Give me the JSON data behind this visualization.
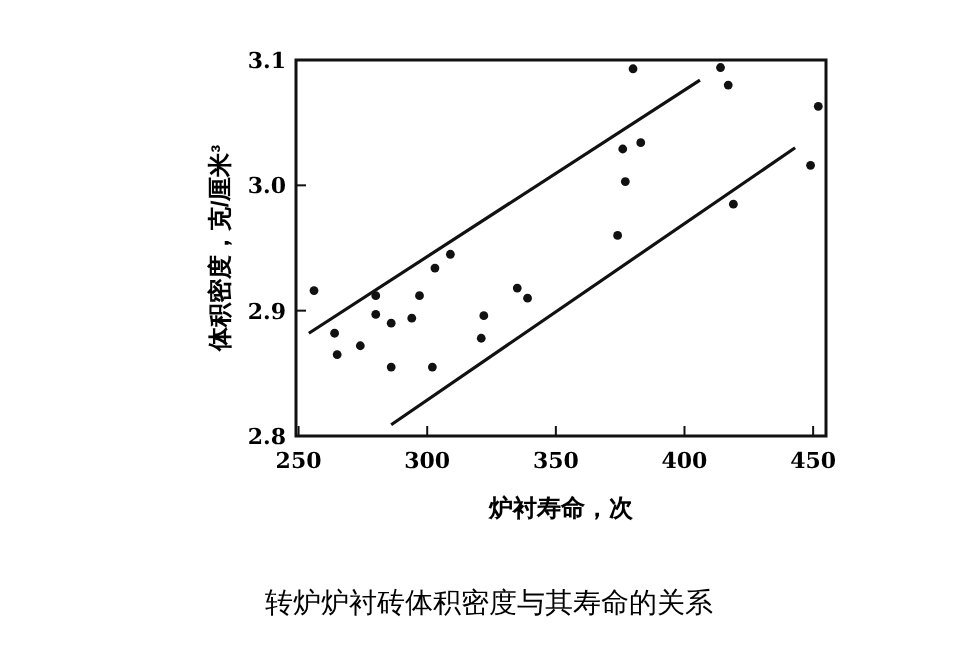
{
  "chart_data": {
    "type": "scatter",
    "title": "转炉炉衬砖体积密度与其寿命的关系",
    "xlabel": "炉衬寿命，次",
    "ylabel": "体积密度，克/厘米³",
    "xlim": [
      249,
      455
    ],
    "ylim": [
      2.8,
      3.1
    ],
    "xticks": [
      250,
      300,
      350,
      400,
      450
    ],
    "yticks": [
      2.8,
      2.9,
      {
        "value": 3.0,
        "label": "3.0"
      },
      3.1
    ],
    "grid": false,
    "marker": "circle",
    "series": [
      {
        "color": "#111111",
        "x": [
          256,
          264,
          265,
          274,
          280,
          280,
          286,
          286,
          294,
          297,
          302,
          303,
          309,
          321,
          322,
          335,
          339,
          374,
          376,
          377,
          380,
          383,
          414,
          417,
          419,
          449,
          452
        ],
        "values": [
          2.916,
          2.882,
          2.865,
          2.872,
          2.912,
          2.897,
          2.89,
          2.855,
          2.894,
          2.912,
          2.855,
          2.934,
          2.945,
          2.878,
          2.896,
          2.918,
          2.91,
          2.96,
          3.029,
          3.003,
          3.093,
          3.034,
          3.094,
          3.08,
          2.985,
          3.016,
          3.063
        ]
      },
      {
        "type": "line",
        "color": "#111111",
        "marker": "none",
        "x": [
          254,
          406
        ],
        "values": [
          2.882,
          3.084
        ]
      },
      {
        "type": "line",
        "color": "#111111",
        "marker": "none",
        "x": [
          286,
          443
        ],
        "values": [
          2.809,
          3.03
        ]
      }
    ]
  }
}
